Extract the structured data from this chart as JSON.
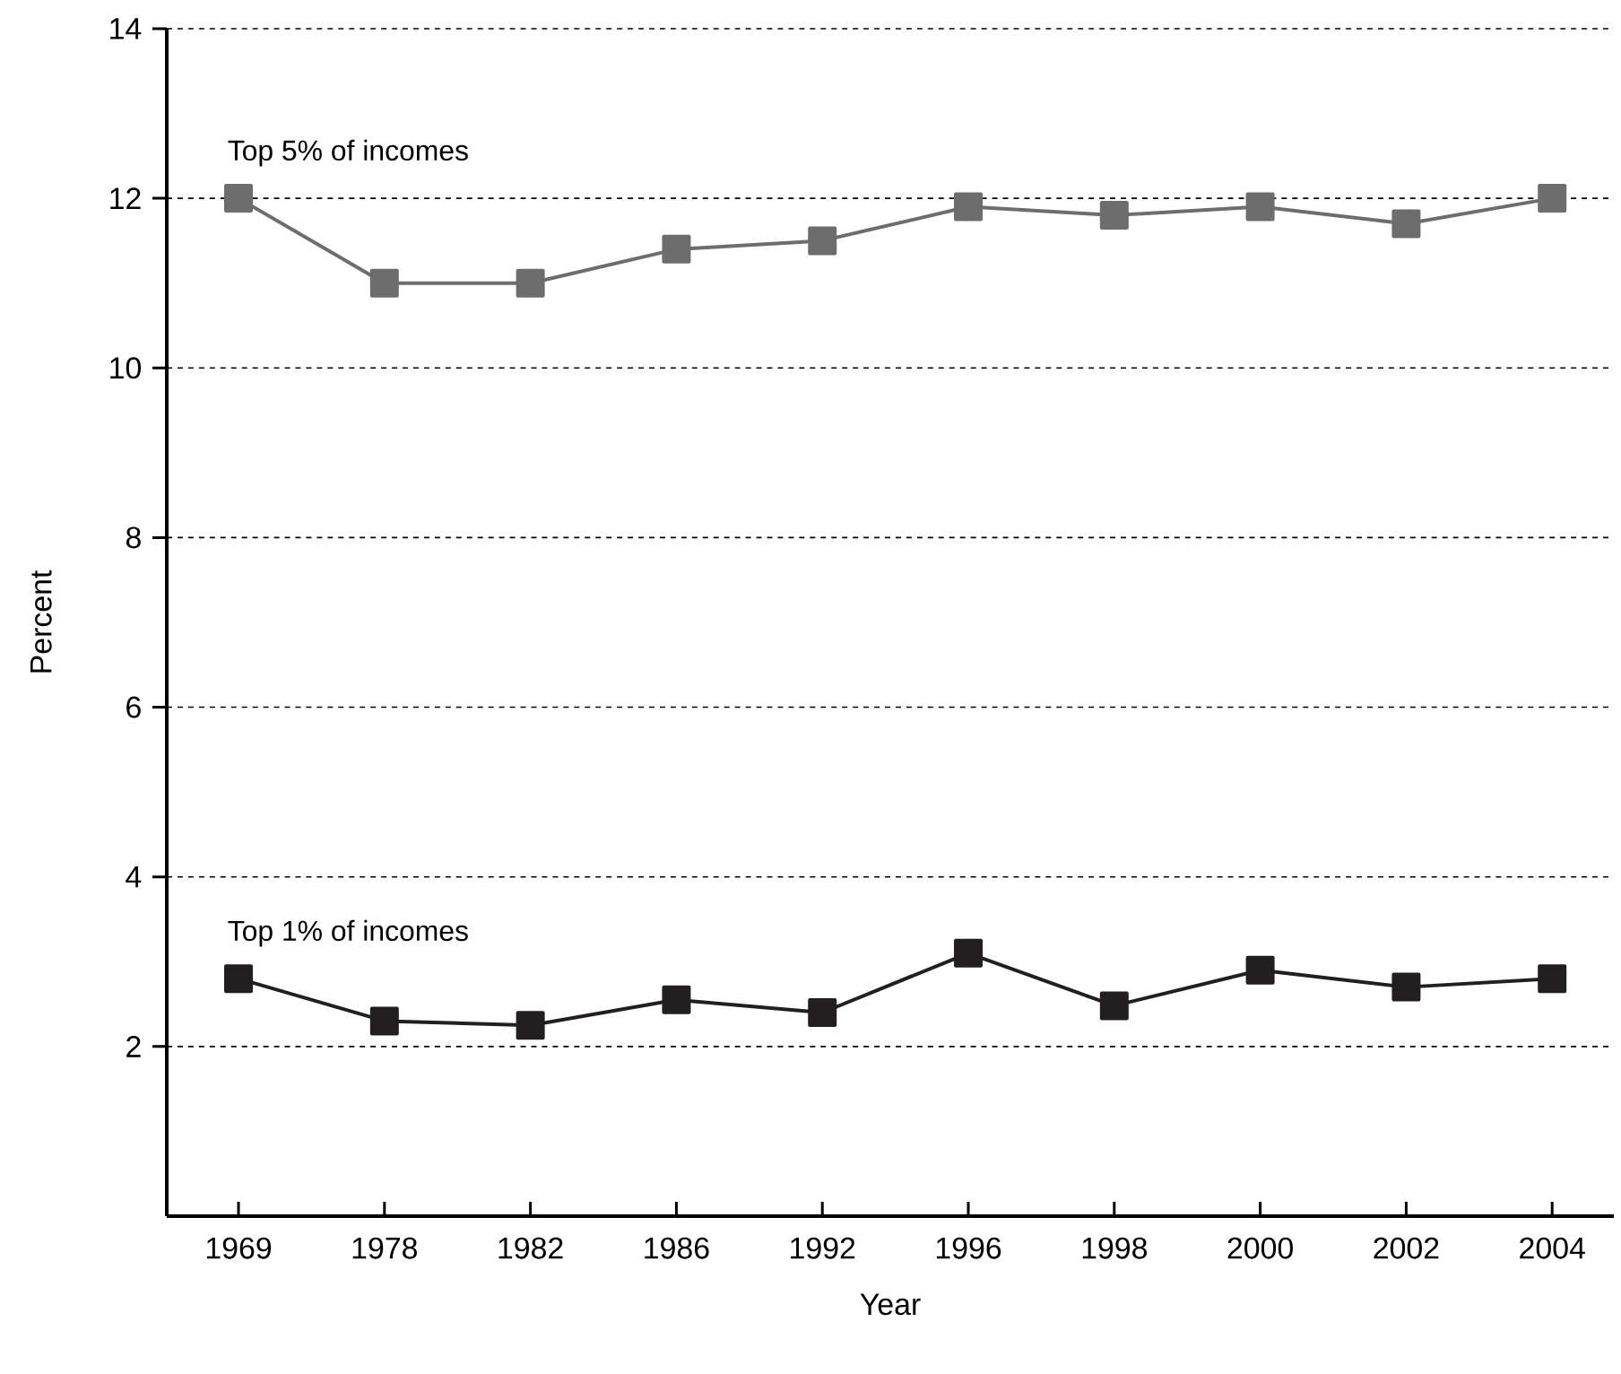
{
  "chart_data": {
    "type": "line",
    "xlabel": "Year",
    "ylabel": "Percent",
    "categories": [
      "1969",
      "1978",
      "1982",
      "1986",
      "1992",
      "1996",
      "1998",
      "2000",
      "2002",
      "2004"
    ],
    "series": [
      {
        "name": "Top 5% of incomes",
        "color": "#6d6d6d",
        "values": [
          12.0,
          11.0,
          11.0,
          11.4,
          11.5,
          11.9,
          11.8,
          11.9,
          11.7,
          12.0
        ]
      },
      {
        "name": "Top 1% of incomes",
        "color": "#231f20",
        "values": [
          2.8,
          2.3,
          2.25,
          2.55,
          2.4,
          3.1,
          2.48,
          2.9,
          2.7,
          2.8
        ]
      }
    ],
    "ylim": [
      0,
      14
    ],
    "yticks": [
      2,
      4,
      6,
      8,
      10,
      12,
      14
    ],
    "grid": "y",
    "marker": "square",
    "line_style": "solid"
  }
}
